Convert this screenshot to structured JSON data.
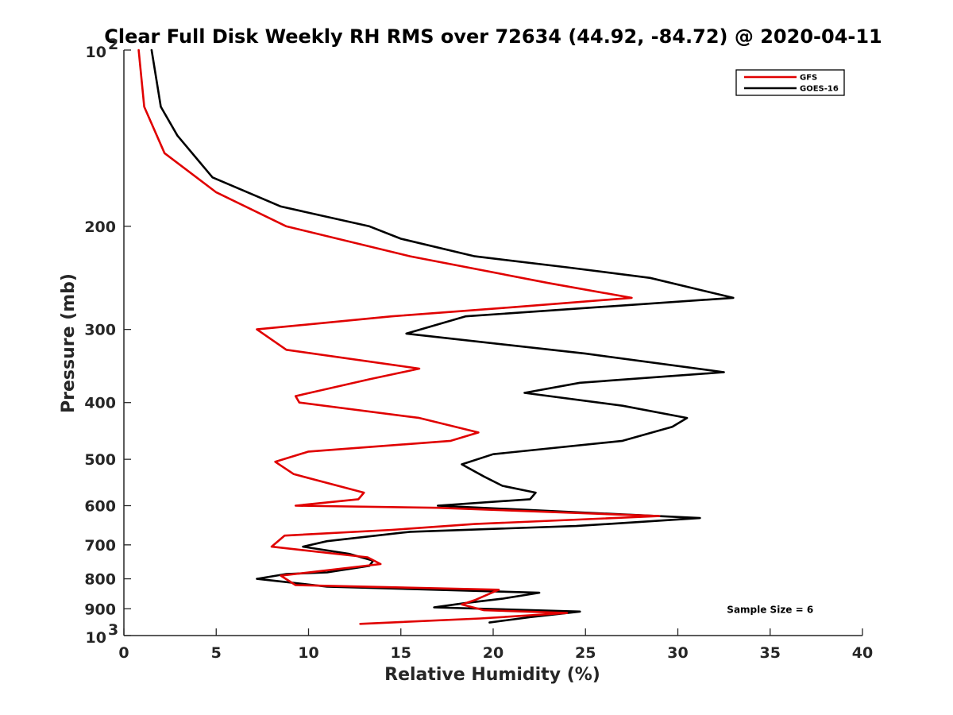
{
  "chart_data": {
    "type": "line",
    "title": "Clear Full Disk Weekly RH RMS over 72634 (44.92, -84.72) @ 2020-04-11",
    "xlabel": "Relative Humidity (%)",
    "ylabel": "Pressure (mb)",
    "xlim": [
      0,
      40
    ],
    "ylim": [
      100,
      1000
    ],
    "yscale": "log",
    "y_reversed": true,
    "x_ticks": [
      0,
      5,
      10,
      15,
      20,
      25,
      30,
      35,
      40
    ],
    "x_tick_labels": [
      "0",
      "5",
      "10",
      "15",
      "20",
      "25",
      "30",
      "35",
      "40"
    ],
    "y_ticks": [
      200,
      300,
      400,
      500,
      600,
      700,
      800,
      900
    ],
    "y_tick_labels": [
      "200",
      "300",
      "400",
      "500",
      "600",
      "700",
      "800",
      "900"
    ],
    "y_decade_labels": [
      {
        "value": 100,
        "base": "10",
        "exp": "2"
      },
      {
        "value": 1000,
        "base": "10",
        "exp": "3"
      }
    ],
    "grid": false,
    "legend_position": "top-right",
    "series": [
      {
        "name": "GFS",
        "color": "#e00000",
        "points": [
          [
            0.8,
            100
          ],
          [
            1.1,
            125
          ],
          [
            2.2,
            150
          ],
          [
            5.0,
            175
          ],
          [
            8.8,
            200
          ],
          [
            15.5,
            225
          ],
          [
            23.0,
            250
          ],
          [
            27.5,
            265
          ],
          [
            21.0,
            275
          ],
          [
            14.5,
            285
          ],
          [
            7.2,
            300
          ],
          [
            8.8,
            325
          ],
          [
            16.0,
            350
          ],
          [
            13.3,
            365
          ],
          [
            9.3,
            390
          ],
          [
            9.5,
            400
          ],
          [
            16.0,
            425
          ],
          [
            19.2,
            450
          ],
          [
            17.7,
            465
          ],
          [
            10.0,
            485
          ],
          [
            8.2,
            505
          ],
          [
            9.2,
            530
          ],
          [
            13.0,
            570
          ],
          [
            12.7,
            585
          ],
          [
            9.3,
            600
          ],
          [
            17.0,
            605
          ],
          [
            29.0,
            625
          ],
          [
            19.0,
            645
          ],
          [
            14.5,
            660
          ],
          [
            8.7,
            675
          ],
          [
            8.0,
            705
          ],
          [
            13.2,
            735
          ],
          [
            13.9,
            755
          ],
          [
            8.5,
            790
          ],
          [
            9.3,
            820
          ],
          [
            20.3,
            835
          ],
          [
            19.0,
            870
          ],
          [
            18.3,
            885
          ],
          [
            19.5,
            905
          ],
          [
            24.0,
            915
          ],
          [
            19.3,
            935
          ],
          [
            12.8,
            955
          ]
        ]
      },
      {
        "name": "GOES-16",
        "color": "#000000",
        "points": [
          [
            1.5,
            100
          ],
          [
            2.0,
            125
          ],
          [
            2.9,
            140
          ],
          [
            4.8,
            165
          ],
          [
            8.5,
            185
          ],
          [
            13.3,
            200
          ],
          [
            15.0,
            210
          ],
          [
            19.0,
            225
          ],
          [
            24.0,
            235
          ],
          [
            28.5,
            245
          ],
          [
            33.0,
            265
          ],
          [
            18.5,
            285
          ],
          [
            15.3,
            305
          ],
          [
            25.0,
            330
          ],
          [
            32.5,
            355
          ],
          [
            24.7,
            370
          ],
          [
            21.7,
            385
          ],
          [
            27.0,
            405
          ],
          [
            30.5,
            425
          ],
          [
            29.7,
            440
          ],
          [
            27.0,
            465
          ],
          [
            20.0,
            490
          ],
          [
            18.3,
            510
          ],
          [
            19.5,
            535
          ],
          [
            20.5,
            555
          ],
          [
            22.3,
            570
          ],
          [
            22.0,
            585
          ],
          [
            17.0,
            600
          ],
          [
            31.2,
            630
          ],
          [
            24.5,
            650
          ],
          [
            15.5,
            665
          ],
          [
            11.0,
            690
          ],
          [
            9.7,
            705
          ],
          [
            12.2,
            725
          ],
          [
            13.5,
            745
          ],
          [
            13.3,
            760
          ],
          [
            11.0,
            780
          ],
          [
            8.8,
            785
          ],
          [
            7.2,
            800
          ],
          [
            11.0,
            825
          ],
          [
            22.5,
            845
          ],
          [
            20.5,
            865
          ],
          [
            18.5,
            880
          ],
          [
            16.8,
            895
          ],
          [
            24.7,
            910
          ],
          [
            22.0,
            930
          ],
          [
            19.8,
            950
          ]
        ]
      }
    ],
    "annotations": [
      {
        "text": "Sample Size = 6",
        "at": [
          35,
          900
        ]
      }
    ]
  }
}
